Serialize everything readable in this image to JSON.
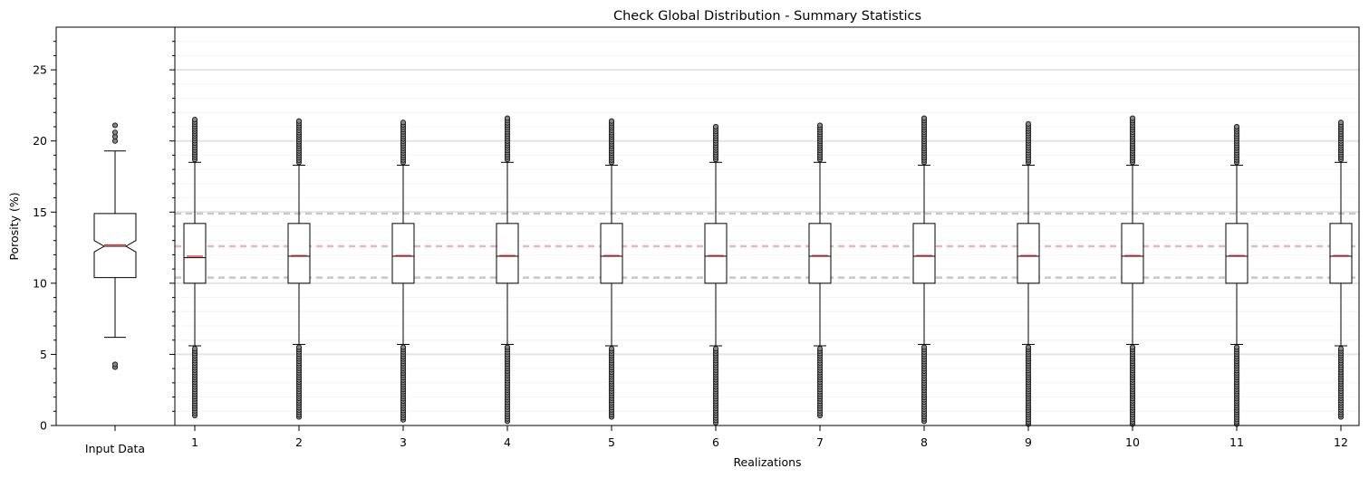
{
  "chart_data": {
    "type": "boxplot",
    "title": "Check Global Distribution - Summary Statistics",
    "ylabel": "Porosity (%)",
    "xlabel": "Realizations",
    "ylim": [
      0,
      28
    ],
    "yticks": [
      0,
      5,
      10,
      15,
      20,
      25
    ],
    "grid": "horizontal",
    "reference_lines": {
      "p25": 10.4,
      "mean": 12.6,
      "p75": 14.9
    },
    "input": {
      "label": "Input Data",
      "q1": 10.4,
      "median": 12.6,
      "q3": 14.9,
      "notch_low": 12.2,
      "notch_high": 13.0,
      "whisker_low": 6.2,
      "whisker_high": 19.3,
      "mean": 12.7,
      "outliers": [
        4.1,
        4.3,
        20.0,
        20.3,
        20.6,
        21.1
      ]
    },
    "realizations": [
      {
        "label": "1",
        "q1": 10.0,
        "median": 11.8,
        "q3": 14.2,
        "whisker_low": 5.6,
        "whisker_high": 18.5,
        "mean": 11.9,
        "outlier_low": [
          0.7,
          5.4
        ],
        "outlier_high": [
          18.7,
          21.5
        ]
      },
      {
        "label": "2",
        "q1": 10.0,
        "median": 11.9,
        "q3": 14.2,
        "whisker_low": 5.7,
        "whisker_high": 18.3,
        "mean": 11.95,
        "outlier_low": [
          0.6,
          5.5
        ],
        "outlier_high": [
          18.5,
          21.4
        ]
      },
      {
        "label": "3",
        "q1": 10.0,
        "median": 11.9,
        "q3": 14.2,
        "whisker_low": 5.7,
        "whisker_high": 18.3,
        "mean": 11.95,
        "outlier_low": [
          0.4,
          5.5
        ],
        "outlier_high": [
          18.5,
          21.3
        ]
      },
      {
        "label": "4",
        "q1": 10.0,
        "median": 11.9,
        "q3": 14.2,
        "whisker_low": 5.7,
        "whisker_high": 18.5,
        "mean": 11.95,
        "outlier_low": [
          0.3,
          5.5
        ],
        "outlier_high": [
          18.7,
          21.6
        ]
      },
      {
        "label": "5",
        "q1": 10.0,
        "median": 11.9,
        "q3": 14.2,
        "whisker_low": 5.6,
        "whisker_high": 18.3,
        "mean": 11.95,
        "outlier_low": [
          0.6,
          5.4
        ],
        "outlier_high": [
          18.5,
          21.4
        ]
      },
      {
        "label": "6",
        "q1": 10.0,
        "median": 11.9,
        "q3": 14.2,
        "whisker_low": 5.6,
        "whisker_high": 18.5,
        "mean": 11.95,
        "outlier_low": [
          0.2,
          5.4
        ],
        "outlier_high": [
          18.7,
          21.0
        ]
      },
      {
        "label": "7",
        "q1": 10.0,
        "median": 11.9,
        "q3": 14.2,
        "whisker_low": 5.6,
        "whisker_high": 18.5,
        "mean": 11.95,
        "outlier_low": [
          0.7,
          5.4
        ],
        "outlier_high": [
          18.7,
          21.1
        ]
      },
      {
        "label": "8",
        "q1": 10.0,
        "median": 11.9,
        "q3": 14.2,
        "whisker_low": 5.7,
        "whisker_high": 18.3,
        "mean": 11.95,
        "outlier_low": [
          0.3,
          5.5
        ],
        "outlier_high": [
          18.5,
          21.6
        ]
      },
      {
        "label": "9",
        "q1": 10.0,
        "median": 11.9,
        "q3": 14.2,
        "whisker_low": 5.7,
        "whisker_high": 18.3,
        "mean": 11.95,
        "outlier_low": [
          0.1,
          5.5
        ],
        "outlier_high": [
          18.5,
          21.2
        ]
      },
      {
        "label": "10",
        "q1": 10.0,
        "median": 11.9,
        "q3": 14.2,
        "whisker_low": 5.7,
        "whisker_high": 18.3,
        "mean": 11.95,
        "outlier_low": [
          0.1,
          5.5
        ],
        "outlier_high": [
          18.5,
          21.6
        ]
      },
      {
        "label": "11",
        "q1": 10.0,
        "median": 11.9,
        "q3": 14.2,
        "whisker_low": 5.7,
        "whisker_high": 18.3,
        "mean": 11.95,
        "outlier_low": [
          0.1,
          5.5
        ],
        "outlier_high": [
          18.5,
          21.0
        ]
      },
      {
        "label": "12",
        "q1": 10.0,
        "median": 11.9,
        "q3": 14.2,
        "whisker_low": 5.6,
        "whisker_high": 18.5,
        "mean": 11.95,
        "outlier_low": [
          0.6,
          5.4
        ],
        "outlier_high": [
          18.7,
          21.3
        ]
      }
    ],
    "colors": {
      "box_edge": "#000000",
      "box_fill": "#ffffff",
      "mean_line": "#e8202a",
      "outlier_fill": "#888888",
      "grid_major": "#e4e4e4",
      "grid_minor": "#f4f4f4",
      "ref_quartile": "#c8c8c8",
      "ref_mean": "#f0b4b8"
    }
  }
}
